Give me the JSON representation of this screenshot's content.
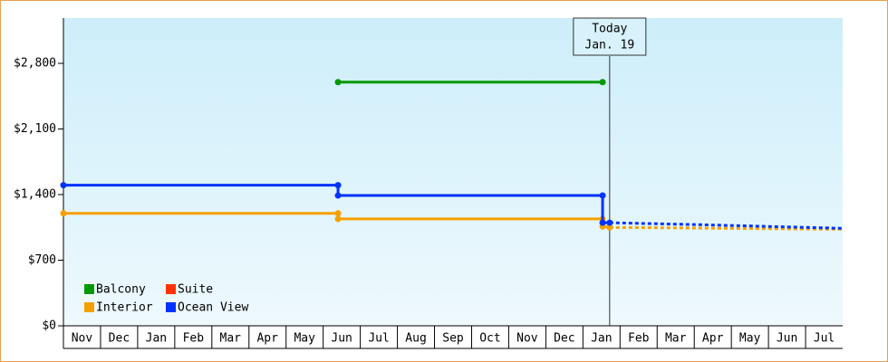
{
  "chart_data": {
    "type": "line",
    "categories": [
      "Nov",
      "Dec",
      "Jan",
      "Feb",
      "Mar",
      "Apr",
      "May",
      "Jun",
      "Jul",
      "Aug",
      "Sep",
      "Oct",
      "Nov",
      "Dec",
      "Jan",
      "Feb",
      "Mar",
      "Apr",
      "May",
      "Jun",
      "Jul"
    ],
    "xlim": [
      0,
      21
    ],
    "ylim": [
      0,
      3283
    ],
    "yticks": [
      {
        "value": 0,
        "label": "$0"
      },
      {
        "value": 700,
        "label": "$700"
      },
      {
        "value": 1400,
        "label": "$1,400"
      },
      {
        "value": 2100,
        "label": "$2,100"
      },
      {
        "value": 2800,
        "label": "$2,800"
      }
    ],
    "today": {
      "label": "Today",
      "date": "Jan. 19",
      "x": 14.72
    },
    "series": [
      {
        "name": "Balcony",
        "color": "#009900",
        "x": [
          7.4,
          14.53
        ],
        "values": [
          2600,
          2600
        ],
        "forecast_x": [],
        "forecast_values": []
      },
      {
        "name": "Suite",
        "color": "#ff3300",
        "x": [],
        "values": [],
        "forecast_x": [],
        "forecast_values": []
      },
      {
        "name": "Interior",
        "color": "#f5a000",
        "x": [
          0,
          7.4,
          7.4,
          14.53,
          14.53,
          14.72
        ],
        "values": [
          1200,
          1200,
          1140,
          1140,
          1060,
          1050
        ],
        "forecast_x": [
          14.72,
          21
        ],
        "forecast_values": [
          1050,
          1030
        ]
      },
      {
        "name": "Ocean View",
        "color": "#0033ff",
        "x": [
          0,
          7.4,
          7.4,
          14.53,
          14.53,
          14.72
        ],
        "values": [
          1500,
          1500,
          1390,
          1390,
          1100,
          1100
        ],
        "forecast_x": [
          14.72,
          17,
          21
        ],
        "forecast_values": [
          1100,
          1080,
          1040
        ]
      }
    ]
  }
}
